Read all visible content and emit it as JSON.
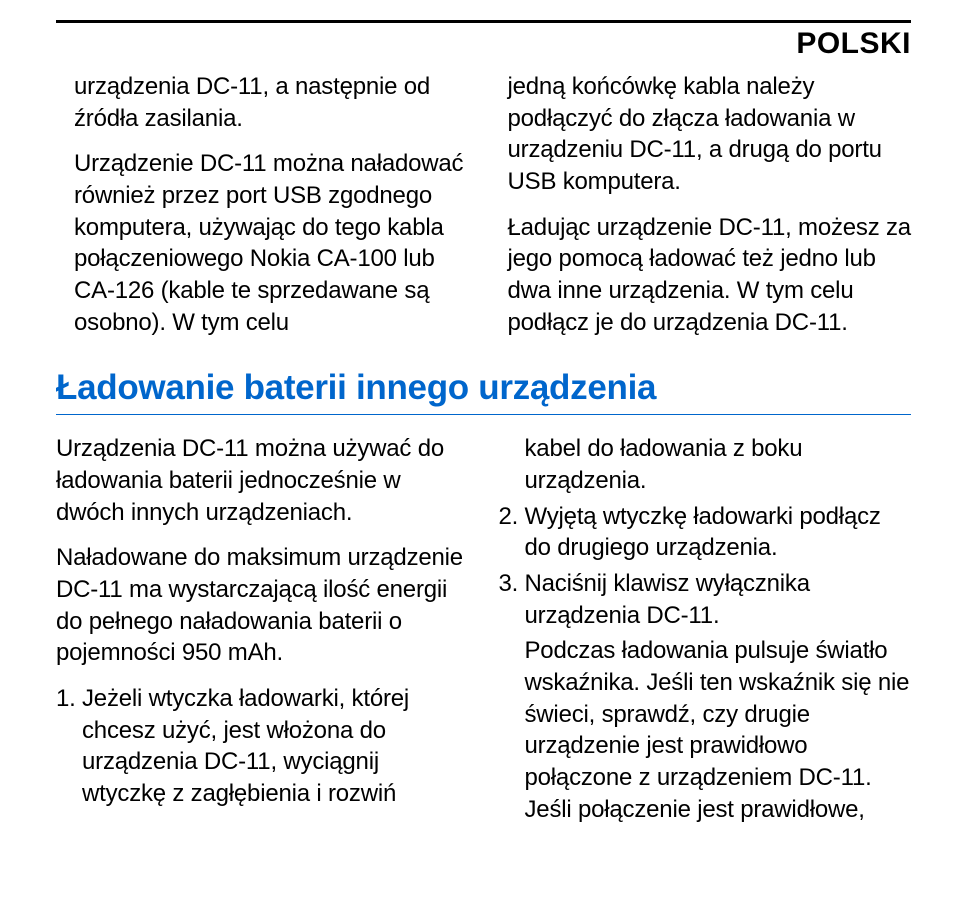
{
  "header": {
    "language_label": "POLSKI"
  },
  "section1": {
    "left": {
      "p1": "urządzenia DC-11, a następnie od źródła zasilania.",
      "p2": "Urządzenie DC-11 można naładować również przez port USB zgodnego komputera, używając do tego kabla połączeniowego Nokia CA-100 lub CA-126 (kable te sprzedawane są osobno). W tym celu"
    },
    "right": {
      "p1": "jedną końcówkę kabla należy podłączyć do złącza ładowania w urządzeniu DC-11, a drugą do portu USB komputera.",
      "p2": "Ładując urządzenie DC-11, możesz za jego pomocą ładować też jedno lub dwa inne urządzenia. W tym celu podłącz je do urządzenia DC-11."
    }
  },
  "section2": {
    "heading": "Ładowanie baterii innego urządzenia",
    "left": {
      "p1": "Urządzenia DC-11 można używać do ładowania baterii jednocześnie w dwóch innych urządzeniach.",
      "p2": "Naładowane do maksimum urządzenie DC-11 ma wystarczającą ilość energii do pełnego naładowania baterii o pojemności 950 mAh.",
      "item1_num": "1.",
      "item1_text": "Jeżeli wtyczka ładowarki, której chcesz użyć, jest włożona do urządzenia DC-11, wyciągnij wtyczkę z zagłębienia i rozwiń"
    },
    "right": {
      "cont1": "kabel do ładowania z boku urządzenia.",
      "item2_num": "2.",
      "item2_text": "Wyjętą wtyczkę ładowarki podłącz do drugiego urządzenia.",
      "item3_num": "3.",
      "item3_text": "Naciśnij klawisz wyłącznika urządzenia DC-11.",
      "cont3": "Podczas ładowania pulsuje światło wskaźnika. Jeśli ten wskaźnik się nie świeci, sprawdź, czy drugie urządzenie jest prawidłowo połączone z urządzeniem DC-11. Jeśli połączenie jest prawidłowe,"
    }
  },
  "colors": {
    "heading": "#0066cc",
    "rule": "#0066cc",
    "text": "#000000",
    "bg": "#ffffff"
  },
  "typography": {
    "body_fontsize": 24,
    "heading_fontsize": 35,
    "header_label_fontsize": 30
  }
}
